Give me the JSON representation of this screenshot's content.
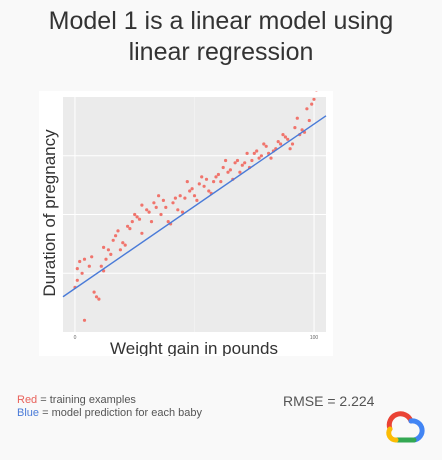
{
  "slide": {
    "title_line1": "Model 1 is a linear model using",
    "title_line2": "linear regression"
  },
  "legend": {
    "red_word": "Red",
    "red_text": " = training examples",
    "blue_word": "Blue",
    "blue_text": " = model prediction for each baby"
  },
  "metric": {
    "rmse_label": "RMSE = 2.224"
  },
  "chart_data": {
    "type": "scatter",
    "title": "",
    "xlabel": "Weight gain in pounds",
    "ylabel": "Duration of pregnancy",
    "xlim": [
      -5,
      105
    ],
    "ylim": [
      0,
      100
    ],
    "xticks": [
      0,
      100
    ],
    "xtick_labels": [
      "0",
      "100"
    ],
    "yticks": [
      25,
      50,
      75
    ],
    "grid": true,
    "legend": "none",
    "series": [
      {
        "type": "scatter",
        "color": "#f0746c",
        "x": [
          0,
          1,
          3,
          1,
          2,
          4,
          4,
          6,
          7,
          8,
          9,
          10,
          11,
          12,
          13,
          12,
          14,
          15,
          16,
          17,
          18,
          19,
          20,
          21,
          22,
          23,
          24,
          25,
          26,
          27,
          28,
          28,
          30,
          31,
          32,
          33,
          34,
          35,
          36,
          37,
          38,
          39,
          40,
          41,
          42,
          43,
          44,
          45,
          46,
          47,
          48,
          49,
          50,
          51,
          52,
          53,
          54,
          55,
          56,
          57,
          58,
          59,
          60,
          61,
          62,
          63,
          64,
          65,
          66,
          67,
          68,
          69,
          70,
          71,
          72,
          73,
          74,
          75,
          76,
          77,
          78,
          79,
          80,
          81,
          82,
          83,
          84,
          85,
          86,
          87,
          88,
          89,
          90,
          91,
          92,
          93,
          94,
          95,
          96,
          97,
          98,
          99,
          100,
          101
        ],
        "y": [
          19,
          22,
          25,
          27,
          30,
          31,
          5,
          28,
          32,
          17,
          15,
          14,
          28,
          26,
          31,
          36,
          35,
          33,
          39,
          41,
          43,
          35,
          38,
          37,
          45,
          44,
          47,
          50,
          49,
          48,
          54,
          42,
          52,
          51,
          47,
          55,
          53,
          58,
          50,
          56,
          53,
          47,
          46,
          55,
          57,
          52,
          58,
          51,
          57,
          64,
          60,
          61,
          58,
          56,
          63,
          66,
          62,
          65,
          60,
          59,
          64,
          66,
          67,
          64,
          70,
          73,
          68,
          69,
          65,
          72,
          73,
          68,
          71,
          72,
          76,
          70,
          73,
          76,
          77,
          74,
          75,
          80,
          79,
          76,
          74,
          77,
          78,
          81,
          80,
          84,
          83,
          82,
          78,
          80,
          87,
          91,
          84,
          86,
          85,
          95,
          90,
          97,
          99,
          103
        ]
      },
      {
        "type": "line",
        "color": "#4a7bd8",
        "x": [
          -5,
          105
        ],
        "y": [
          15,
          92
        ]
      }
    ]
  },
  "logo": {
    "colors": {
      "red": "#ea4335",
      "blue": "#4285f4",
      "yellow": "#fbbc04",
      "green": "#34a853"
    }
  }
}
